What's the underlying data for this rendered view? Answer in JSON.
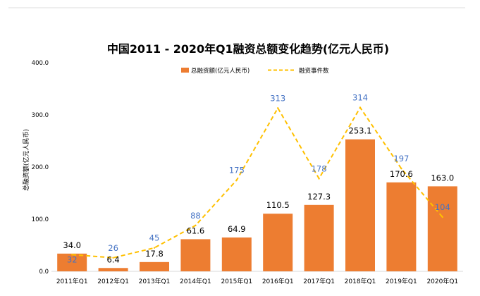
{
  "chart_data": {
    "type": "bar",
    "title": "中国2011 - 2020年Q1融资总额变化趋势(亿元人民币)",
    "ylabel": "总融资额(亿元人民币)",
    "xlabel": "",
    "ylim": [
      0,
      400
    ],
    "yticks": [
      "0.0",
      "100.0",
      "200.0",
      "300.0",
      "400.0"
    ],
    "categories": [
      "2011年Q1",
      "2012年Q1",
      "2013年Q1",
      "2014年Q1",
      "2015年Q1",
      "2016年Q1",
      "2017年Q1",
      "2018年Q1",
      "2019年Q1",
      "2020年Q1"
    ],
    "series": [
      {
        "name": "总融资额(亿元人民币)",
        "kind": "bar",
        "color": "#ED7D31",
        "values": [
          34.0,
          6.4,
          17.8,
          61.6,
          64.9,
          110.5,
          127.3,
          253.1,
          170.6,
          163.0
        ],
        "labels": [
          "34.0",
          "6.4",
          "17.8",
          "61.6",
          "64.9",
          "110.5",
          "127.3",
          "253.1",
          "170.6",
          "163.0"
        ]
      },
      {
        "name": "融资事件数",
        "kind": "line",
        "style": "dashed",
        "color": "#FFC000",
        "label_color": "#4472C4",
        "values": [
          32,
          26,
          45,
          88,
          175,
          313,
          178,
          314,
          197,
          104
        ]
      }
    ],
    "legend_position": "top-center",
    "grid": false
  },
  "colors": {
    "top_rule": "#dcdcdc",
    "axis": "#d9d9d9",
    "text": "#000000"
  }
}
